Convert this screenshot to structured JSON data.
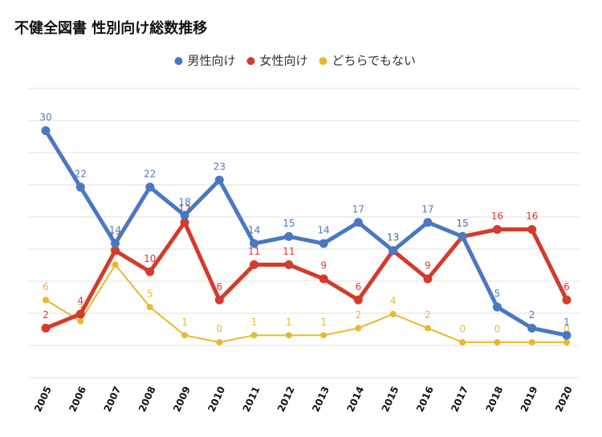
{
  "chart_data": {
    "type": "line",
    "title": "不健全図書 性別向け総数推移",
    "categories": [
      "2005",
      "2006",
      "2007",
      "2008",
      "2009",
      "2010",
      "2011",
      "2012",
      "2013",
      "2014",
      "2015",
      "2016",
      "2017",
      "2018",
      "2019",
      "2020"
    ],
    "series": [
      {
        "name": "男性向け",
        "color": "#4a78c2",
        "values": [
          30,
          22,
          14,
          22,
          18,
          23,
          14,
          15,
          14,
          17,
          13,
          17,
          15,
          5,
          2,
          1
        ]
      },
      {
        "name": "女性向け",
        "color": "#d33b2c",
        "values": [
          2,
          4,
          13,
          10,
          17,
          6,
          11,
          11,
          9,
          6,
          13,
          9,
          15,
          16,
          16,
          6
        ]
      },
      {
        "name": "どちらでもない",
        "color": "#e8b92e",
        "values": [
          6,
          3,
          11,
          5,
          1,
          0,
          1,
          1,
          1,
          2,
          4,
          2,
          0,
          0,
          0,
          0
        ]
      }
    ],
    "ylim": [
      -5,
      36
    ]
  }
}
